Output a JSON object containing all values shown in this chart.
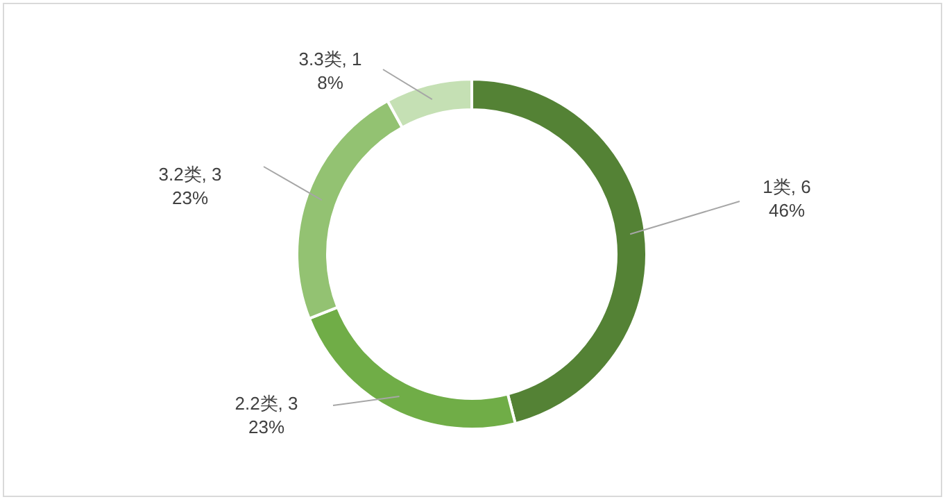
{
  "chart_data": {
    "type": "donut",
    "categories": [
      "1类, 6",
      "2.2类, 3",
      "3.2类, 3",
      "3.3类, 1"
    ],
    "values": [
      46,
      23,
      23,
      8
    ],
    "value_labels": [
      "46%",
      "23%",
      "23%",
      "8%"
    ],
    "colors": [
      "#548235",
      "#70ad47",
      "#93c272",
      "#c5e0b4"
    ]
  }
}
